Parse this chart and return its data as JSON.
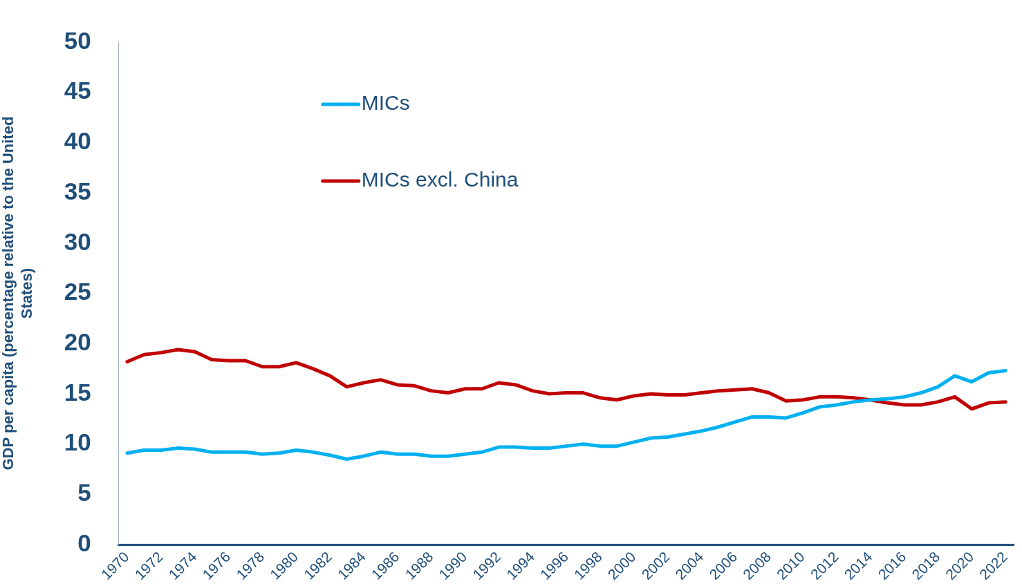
{
  "chart_data": {
    "type": "line",
    "ylabel": "GDP per capita (percentage relative to the United States)",
    "categories": [
      "1970",
      null,
      "1972",
      null,
      "1974",
      null,
      "1976",
      null,
      "1978",
      null,
      "1980",
      null,
      "1982",
      null,
      "1984",
      null,
      "1986",
      null,
      "1988",
      null,
      "1990",
      null,
      "1992",
      null,
      "1994",
      null,
      "1996",
      null,
      "1998",
      null,
      "2000",
      null,
      "2002",
      null,
      "2004",
      null,
      "2006",
      null,
      "2008",
      null,
      "2010",
      null,
      "2012",
      null,
      "2014",
      null,
      "2016",
      null,
      "2018",
      null,
      "2020",
      null,
      "2022"
    ],
    "series": [
      {
        "name": "MICs",
        "color": "#00b0f0",
        "values": [
          9.1,
          9.4,
          9.4,
          9.6,
          9.5,
          9.2,
          9.2,
          9.2,
          9.0,
          9.1,
          9.4,
          9.2,
          8.9,
          8.5,
          8.8,
          9.2,
          9.0,
          9.0,
          8.8,
          8.8,
          9.0,
          9.2,
          9.7,
          9.7,
          9.6,
          9.6,
          9.8,
          10.0,
          9.8,
          9.8,
          10.2,
          10.6,
          10.7,
          11.0,
          11.3,
          11.7,
          12.2,
          12.7,
          12.7,
          12.6,
          13.1,
          13.7,
          13.9,
          14.2,
          14.4,
          14.5,
          14.7,
          15.1,
          15.7,
          16.8,
          16.2,
          17.1,
          17.3
        ]
      },
      {
        "name": "MICs excl. China",
        "color": "#c00000",
        "values": [
          18.2,
          18.9,
          19.1,
          19.4,
          19.2,
          18.4,
          18.3,
          18.3,
          17.7,
          17.7,
          18.1,
          17.5,
          16.8,
          15.7,
          16.1,
          16.4,
          15.9,
          15.8,
          15.3,
          15.1,
          15.5,
          15.5,
          16.1,
          15.9,
          15.3,
          15.0,
          15.1,
          15.1,
          14.6,
          14.4,
          14.8,
          15.0,
          14.9,
          14.9,
          15.1,
          15.3,
          15.4,
          15.5,
          15.1,
          14.3,
          14.4,
          14.7,
          14.7,
          14.6,
          14.4,
          14.1,
          13.9,
          13.9,
          14.2,
          14.7,
          13.5,
          14.1,
          14.2
        ]
      }
    ],
    "ylim": [
      0,
      50
    ],
    "yticks": [
      0,
      5,
      10,
      15,
      20,
      25,
      30,
      35,
      40,
      45,
      50
    ],
    "grid": false,
    "legend": "top left",
    "marker": "none",
    "line_style": "solid"
  }
}
